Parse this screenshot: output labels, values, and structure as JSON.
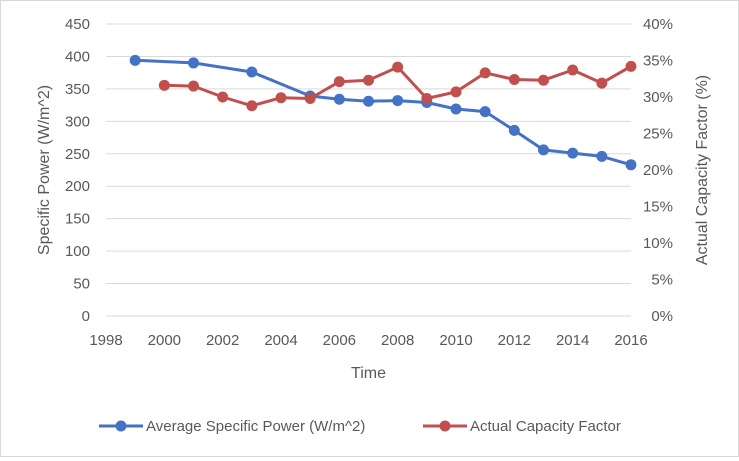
{
  "chart_data": {
    "type": "line",
    "title": "",
    "xlabel": "Time",
    "ylabel_left": "Specific Power (W/m^2)",
    "ylabel_right": "Actual Capacity Factor (%)",
    "xlim": [
      1998,
      2016
    ],
    "ylim_left": [
      0,
      450
    ],
    "ylim_right": [
      0,
      0.4
    ],
    "x_ticks": [
      "1998",
      "2000",
      "2002",
      "2004",
      "2006",
      "2008",
      "2010",
      "2012",
      "2014",
      "2016"
    ],
    "y_left_ticks": [
      "0",
      "50",
      "100",
      "150",
      "200",
      "250",
      "300",
      "350",
      "400",
      "450"
    ],
    "y_right_ticks": [
      "0%",
      "5%",
      "10%",
      "15%",
      "20%",
      "25%",
      "30%",
      "35%",
      "40%"
    ],
    "grid": "horizontal",
    "legend_position": "bottom",
    "series": [
      {
        "name": "Average Specific Power (W/m^2)",
        "axis": "left",
        "color": "#4472c4",
        "x": [
          1999,
          2001,
          2003,
          2005,
          2006,
          2007,
          2008,
          2009,
          2010,
          2011,
          2012,
          2013,
          2014,
          2015,
          2016
        ],
        "values": [
          394,
          390,
          376,
          339,
          334,
          331,
          332,
          329,
          319,
          315,
          286,
          256,
          251,
          246,
          233
        ]
      },
      {
        "name": "Actual Capacity Factor",
        "axis": "right",
        "color": "#c0504d",
        "x": [
          2000,
          2001,
          2002,
          2003,
          2004,
          2005,
          2006,
          2007,
          2008,
          2009,
          2010,
          2011,
          2012,
          2013,
          2014,
          2015,
          2016
        ],
        "values": [
          0.316,
          0.315,
          0.3,
          0.288,
          0.299,
          0.298,
          0.321,
          0.323,
          0.341,
          0.298,
          0.307,
          0.333,
          0.324,
          0.323,
          0.337,
          0.319,
          0.342
        ]
      }
    ]
  }
}
